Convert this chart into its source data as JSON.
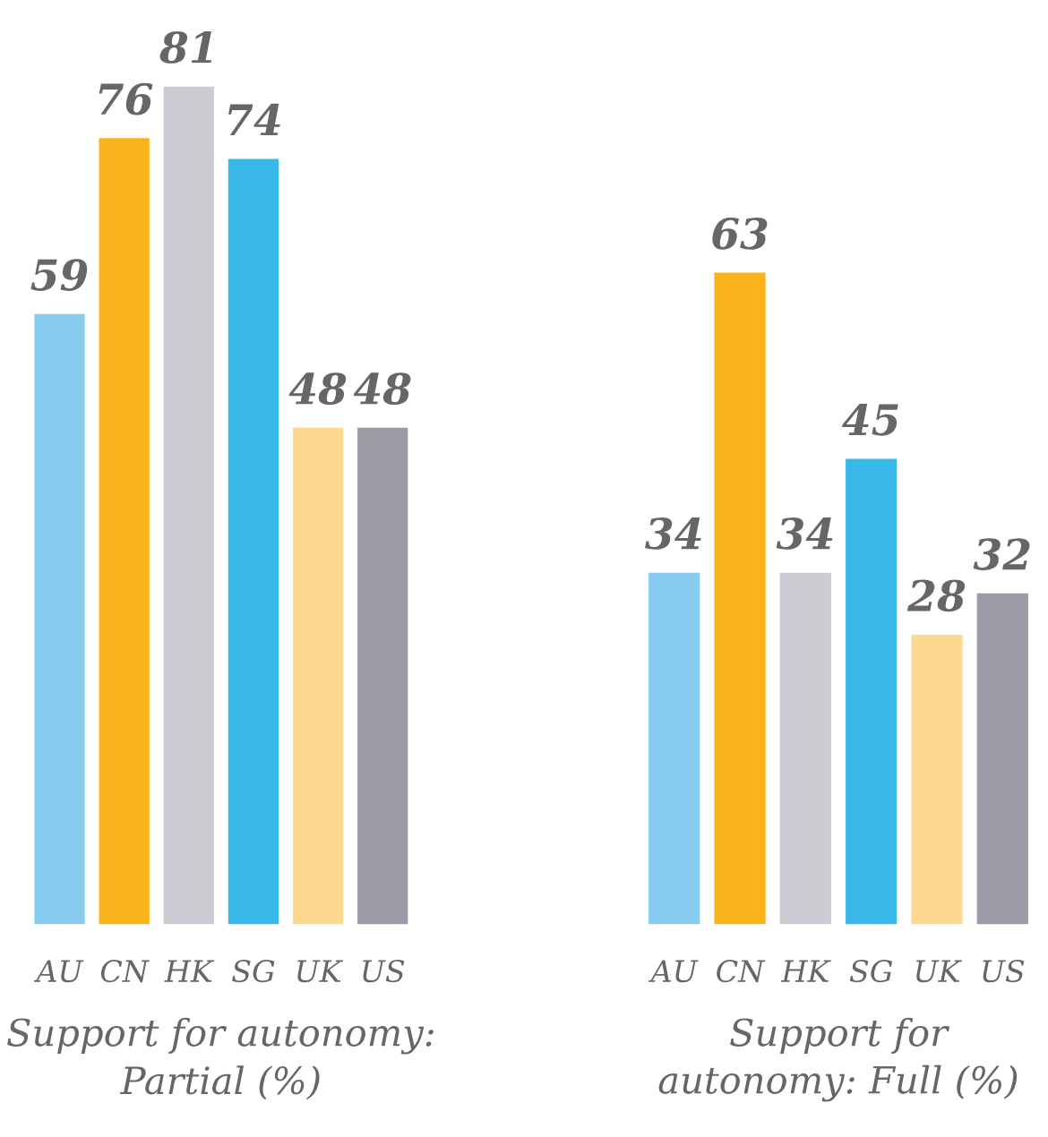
{
  "chart_data": [
    {
      "type": "bar",
      "xlabel": "Support for autonomy: Partial (%)",
      "categories": [
        "AU",
        "CN",
        "HK",
        "SG",
        "UK",
        "US"
      ],
      "values": [
        59,
        76,
        81,
        74,
        48,
        48
      ],
      "colors": [
        "#87cbef",
        "#fbb31c",
        "#cccdd2",
        "#39b9ea",
        "#fed891",
        "#9a9ba7"
      ],
      "data_labels": true,
      "grid": false,
      "tick_labels": "x"
    },
    {
      "type": "bar",
      "xlabel": "Support for autonomy: Full (%)",
      "categories": [
        "AU",
        "CN",
        "HK",
        "SG",
        "UK",
        "US"
      ],
      "values": [
        34,
        63,
        34,
        45,
        28,
        32
      ],
      "colors": [
        "#87cbef",
        "#fbb31c",
        "#cccdd2",
        "#39b9ea",
        "#fed891",
        "#9a9ba7"
      ],
      "data_labels": true,
      "grid": false,
      "tick_labels": "x"
    }
  ]
}
